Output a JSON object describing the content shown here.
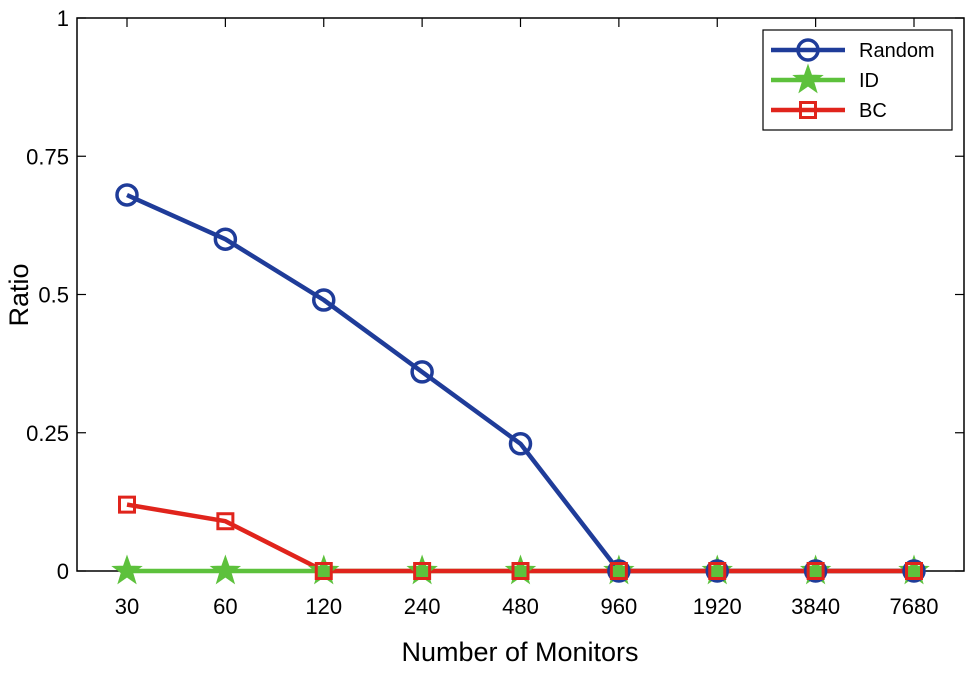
{
  "chart_data": {
    "type": "line",
    "categories": [
      "30",
      "60",
      "120",
      "240",
      "480",
      "960",
      "1920",
      "3840",
      "7680"
    ],
    "xlabel": "Number of Monitors",
    "ylabel": "Ratio",
    "ylim": [
      0,
      1
    ],
    "yticks": [
      0,
      0.25,
      0.5,
      0.75,
      1
    ],
    "ytick_labels": [
      "0",
      "0.25",
      "0.5",
      "0.75",
      "1"
    ],
    "grid": false,
    "legend_position": "top-right",
    "series": [
      {
        "name": "Random",
        "color": "#1f3c99",
        "marker": "circle",
        "values": [
          0.68,
          0.6,
          0.49,
          0.36,
          0.23,
          0,
          0,
          0,
          0
        ]
      },
      {
        "name": "ID",
        "color": "#5dc13c",
        "marker": "star",
        "values": [
          0,
          0,
          0,
          0,
          0,
          0,
          0,
          0,
          0
        ]
      },
      {
        "name": "BC",
        "color": "#e0241c",
        "marker": "square",
        "values": [
          0.12,
          0.09,
          0,
          0,
          0,
          0,
          0,
          0,
          0
        ]
      }
    ]
  }
}
